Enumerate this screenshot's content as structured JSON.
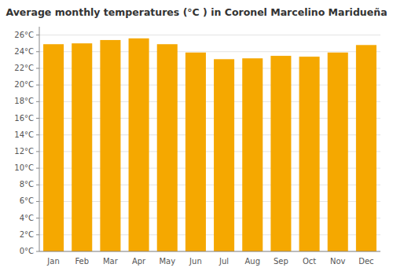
{
  "chart_data": {
    "type": "bar",
    "title": "Average monthly temperatures (°C ) in Coronel Marcelino Maridueña",
    "categories": [
      "Jan",
      "Feb",
      "Mar",
      "Apr",
      "May",
      "Jun",
      "Jul",
      "Aug",
      "Sep",
      "Oct",
      "Nov",
      "Dec"
    ],
    "values": [
      24.9,
      25.0,
      25.4,
      25.6,
      24.9,
      23.9,
      23.1,
      23.2,
      23.5,
      23.4,
      23.9,
      24.8
    ],
    "color": "#F5A800",
    "ylim": [
      0,
      27
    ],
    "yticks": [
      {
        "value": 0,
        "label": "0°C"
      },
      {
        "value": 2,
        "label": "2°C"
      },
      {
        "value": 4,
        "label": "4°C"
      },
      {
        "value": 6,
        "label": "6°C"
      },
      {
        "value": 8,
        "label": "8°C"
      },
      {
        "value": 10,
        "label": "10°C"
      },
      {
        "value": 12,
        "label": "12°C"
      },
      {
        "value": 14,
        "label": "14°C"
      },
      {
        "value": 16,
        "label": "16°C"
      },
      {
        "value": 18,
        "label": "18°C"
      },
      {
        "value": 20,
        "label": "20°C"
      },
      {
        "value": 22,
        "label": "22°C"
      },
      {
        "value": 24,
        "label": "24°C"
      },
      {
        "value": 26,
        "label": "26°C"
      }
    ],
    "grid": true
  }
}
